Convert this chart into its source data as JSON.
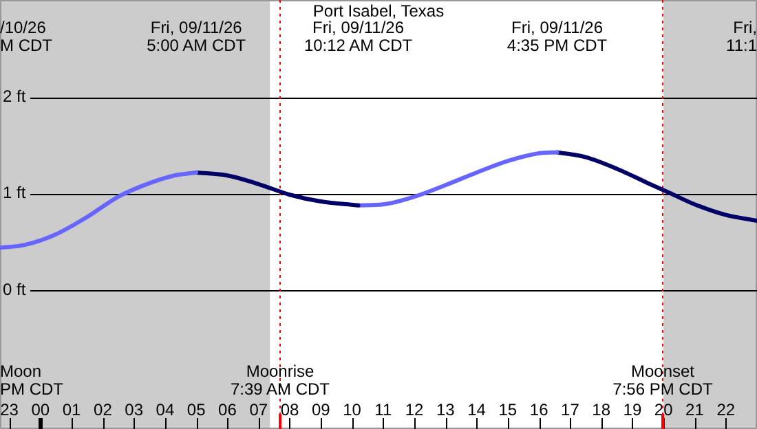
{
  "chart_data": {
    "type": "line",
    "title": "Port Isabel, Texas",
    "xlim": [
      "--09-10T22:42",
      "--09-11T23:00"
    ],
    "ylim": [
      -1.44,
      3.01
    ],
    "xticks": [
      {
        "value": "--09-10T23:00",
        "label": "23"
      },
      {
        "value": "--09-11T00:00",
        "label": "00"
      },
      {
        "value": "--09-11T01:00",
        "label": "01"
      },
      {
        "value": "--09-11T02:00",
        "label": "02"
      },
      {
        "value": "--09-11T03:00",
        "label": "03"
      },
      {
        "value": "--09-11T04:00",
        "label": "04"
      },
      {
        "value": "--09-11T05:00",
        "label": "05"
      },
      {
        "value": "--09-11T06:00",
        "label": "06"
      },
      {
        "value": "--09-11T07:00",
        "label": "07"
      },
      {
        "value": "--09-11T08:00",
        "label": "08"
      },
      {
        "value": "--09-11T09:00",
        "label": "09"
      },
      {
        "value": "--09-11T10:00",
        "label": "10"
      },
      {
        "value": "--09-11T11:00",
        "label": "11"
      },
      {
        "value": "--09-11T12:00",
        "label": "12"
      },
      {
        "value": "--09-11T13:00",
        "label": "13"
      },
      {
        "value": "--09-11T14:00",
        "label": "14"
      },
      {
        "value": "--09-11T15:00",
        "label": "15"
      },
      {
        "value": "--09-11T16:00",
        "label": "16"
      },
      {
        "value": "--09-11T17:00",
        "label": "17"
      },
      {
        "value": "--09-11T18:00",
        "label": "18"
      },
      {
        "value": "--09-11T19:00",
        "label": "19"
      },
      {
        "value": "--09-11T20:00",
        "label": "20"
      },
      {
        "value": "--09-11T21:00",
        "label": "21"
      },
      {
        "value": "--09-11T22:00",
        "label": "22"
      }
    ],
    "yticks": [
      {
        "value": 0,
        "label": "0 ft"
      },
      {
        "value": 1,
        "label": "1 ft"
      },
      {
        "value": 2,
        "label": "2 ft"
      }
    ],
    "grid": "y",
    "legend": false,
    "marker": "none",
    "line_style": "solid",
    "series": [
      {
        "color": "#6666ff",
        "x": [
          "--09-10T22:42",
          "--09-10T23:30",
          "--09-11T00:30",
          "--09-11T01:30",
          "--09-11T02:30",
          "--09-11T03:30",
          "--09-11T04:18",
          "--09-11T05:00"
        ],
        "values": [
          0.44,
          0.47,
          0.58,
          0.76,
          0.97,
          1.11,
          1.19,
          1.22
        ]
      },
      {
        "color": "#000066",
        "x": [
          "--09-11T05:00",
          "--09-11T06:00",
          "--09-11T07:00",
          "--09-11T08:00",
          "--09-11T09:00",
          "--09-11T10:12"
        ],
        "values": [
          1.22,
          1.19,
          1.1,
          0.99,
          0.92,
          0.88
        ]
      },
      {
        "color": "#6666ff",
        "x": [
          "--09-11T10:12",
          "--09-11T11:00",
          "--09-11T12:00",
          "--09-11T13:00",
          "--09-11T14:00",
          "--09-11T15:00",
          "--09-11T16:00",
          "--09-11T16:35"
        ],
        "values": [
          0.88,
          0.89,
          0.97,
          1.09,
          1.22,
          1.34,
          1.42,
          1.43
        ]
      },
      {
        "color": "#000066",
        "x": [
          "--09-11T16:35",
          "--09-11T17:30",
          "--09-11T18:30",
          "--09-11T19:30",
          "--09-11T20:15",
          "--09-11T21:00",
          "--09-11T22:00",
          "--09-11T23:00"
        ],
        "values": [
          1.43,
          1.38,
          1.26,
          1.11,
          1.0,
          0.89,
          0.78,
          0.72
        ]
      }
    ],
    "bands": [
      {
        "axis": "x",
        "from": "--09-10T22:42",
        "to": "--09-11T07:22",
        "color": "#cccccc"
      },
      {
        "axis": "x",
        "from": "--09-11T20:00",
        "to": "--09-11T23:00",
        "color": "#cccccc"
      }
    ],
    "ref_lines": [
      {
        "axis": "x",
        "value": "--09-11T07:39",
        "label": "Moonrise\n7:39 AM CDT",
        "color": "#ff0000"
      },
      {
        "axis": "x",
        "value": "--09-11T19:56",
        "label": "Moonset\n7:56 PM CDT",
        "color": "#ff0000"
      }
    ],
    "annotations": [
      "Fri, 09/11/26\n5:00 AM CDT",
      "Fri, 09/11/26\n10:12 AM CDT",
      "Fri, 09/11/26\n4:35 PM CDT",
      "/10/26\nM CDT",
      "Fri,\n11:1",
      "Moon\nPM CDT"
    ]
  }
}
